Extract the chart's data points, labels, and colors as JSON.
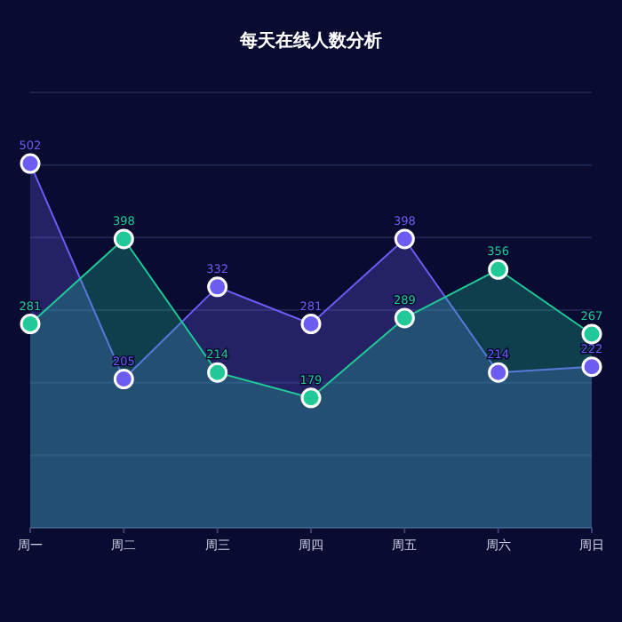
{
  "chart_data": {
    "type": "area",
    "title": "每天在线人数分析",
    "categories": [
      "周一",
      "周二",
      "周三",
      "周四",
      "周五",
      "周六",
      "周日"
    ],
    "series": [
      {
        "color": "#6b5cf2",
        "values": [
          502,
          205,
          332,
          281,
          398,
          214,
          222
        ]
      },
      {
        "color": "#20c997",
        "values": [
          281,
          398,
          214,
          179,
          289,
          356,
          267
        ]
      }
    ],
    "ylim": [
      0,
      600
    ],
    "yticks": [
      {
        "value": 0,
        "label": null
      },
      {
        "value": 100,
        "label": null
      },
      {
        "value": 200,
        "label": null
      },
      {
        "value": 300,
        "label": null
      },
      {
        "value": 400,
        "label": null
      },
      {
        "value": 500,
        "label": null
      },
      {
        "value": 600,
        "label": null
      }
    ],
    "grid": "y",
    "marker": "circle",
    "data_labels": true,
    "tick_labels": "x"
  }
}
